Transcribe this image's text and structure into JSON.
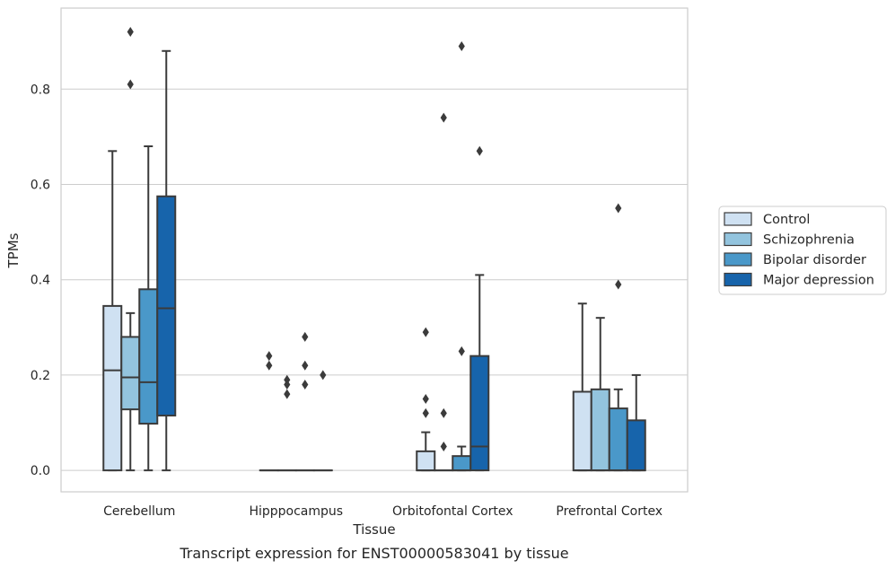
{
  "chart_data": {
    "type": "boxplot",
    "title": "",
    "xlabel": "Tissue",
    "ylabel": "TPMs",
    "caption": "Transcript expression for ENST00000583041 by tissue",
    "ylim": [
      -0.045,
      0.97
    ],
    "yticks": [
      "0.0",
      "0.2",
      "0.4",
      "0.6",
      "0.8"
    ],
    "grid": "horizontal",
    "legend_position": "right",
    "categories": [
      "Cerebellum",
      "Hipppocampus",
      "Orbitofontal Cortex",
      "Prefrontal Cortex"
    ],
    "series": [
      {
        "name": "Control",
        "color": "#cfe1f2",
        "boxes": [
          {
            "q1": 0.0,
            "median": 0.21,
            "q3": 0.345,
            "whisker_low": 0.0,
            "whisker_high": 0.67,
            "outliers": []
          },
          {
            "q1": 0.0,
            "median": 0.0,
            "q3": 0.0,
            "whisker_low": 0.0,
            "whisker_high": 0.0,
            "outliers": [
              0.22,
              0.24
            ]
          },
          {
            "q1": 0.0,
            "median": 0.0,
            "q3": 0.04,
            "whisker_low": 0.0,
            "whisker_high": 0.08,
            "outliers": [
              0.12,
              0.15,
              0.29
            ]
          },
          {
            "q1": 0.0,
            "median": 0.0,
            "q3": 0.165,
            "whisker_low": 0.0,
            "whisker_high": 0.35,
            "outliers": []
          }
        ]
      },
      {
        "name": "Schizophrenia",
        "color": "#93c4de",
        "boxes": [
          {
            "q1": 0.128,
            "median": 0.195,
            "q3": 0.28,
            "whisker_low": 0.0,
            "whisker_high": 0.33,
            "outliers": [
              0.81,
              0.92
            ]
          },
          {
            "q1": 0.0,
            "median": 0.0,
            "q3": 0.0,
            "whisker_low": 0.0,
            "whisker_high": 0.0,
            "outliers": [
              0.16,
              0.18,
              0.19
            ]
          },
          {
            "q1": 0.0,
            "median": 0.0,
            "q3": 0.0,
            "whisker_low": 0.0,
            "whisker_high": 0.0,
            "outliers": [
              0.05,
              0.12,
              0.74
            ]
          },
          {
            "q1": 0.0,
            "median": 0.0,
            "q3": 0.17,
            "whisker_low": 0.0,
            "whisker_high": 0.32,
            "outliers": []
          }
        ]
      },
      {
        "name": "Bipolar disorder",
        "color": "#4a98c9",
        "boxes": [
          {
            "q1": 0.098,
            "median": 0.185,
            "q3": 0.38,
            "whisker_low": 0.0,
            "whisker_high": 0.68,
            "outliers": []
          },
          {
            "q1": 0.0,
            "median": 0.0,
            "q3": 0.0,
            "whisker_low": 0.0,
            "whisker_high": 0.0,
            "outliers": [
              0.18,
              0.22,
              0.28
            ]
          },
          {
            "q1": 0.0,
            "median": 0.0,
            "q3": 0.03,
            "whisker_low": 0.0,
            "whisker_high": 0.05,
            "outliers": [
              0.25,
              0.89
            ]
          },
          {
            "q1": 0.0,
            "median": 0.0,
            "q3": 0.13,
            "whisker_low": 0.0,
            "whisker_high": 0.17,
            "outliers": [
              0.39,
              0.55
            ]
          }
        ]
      },
      {
        "name": "Major depression",
        "color": "#1764ab",
        "boxes": [
          {
            "q1": 0.115,
            "median": 0.34,
            "q3": 0.575,
            "whisker_low": 0.0,
            "whisker_high": 0.88,
            "outliers": []
          },
          {
            "q1": 0.0,
            "median": 0.0,
            "q3": 0.0,
            "whisker_low": 0.0,
            "whisker_high": 0.0,
            "outliers": [
              0.2
            ]
          },
          {
            "q1": 0.0,
            "median": 0.05,
            "q3": 0.24,
            "whisker_low": 0.0,
            "whisker_high": 0.41,
            "outliers": [
              0.67
            ]
          },
          {
            "q1": 0.0,
            "median": 0.0,
            "q3": 0.105,
            "whisker_low": 0.0,
            "whisker_high": 0.2,
            "outliers": []
          }
        ]
      }
    ]
  },
  "colors": {
    "grid": "#cccccc",
    "frame": "#cccccc",
    "line": "#3b3b3b",
    "text": "#262626"
  }
}
